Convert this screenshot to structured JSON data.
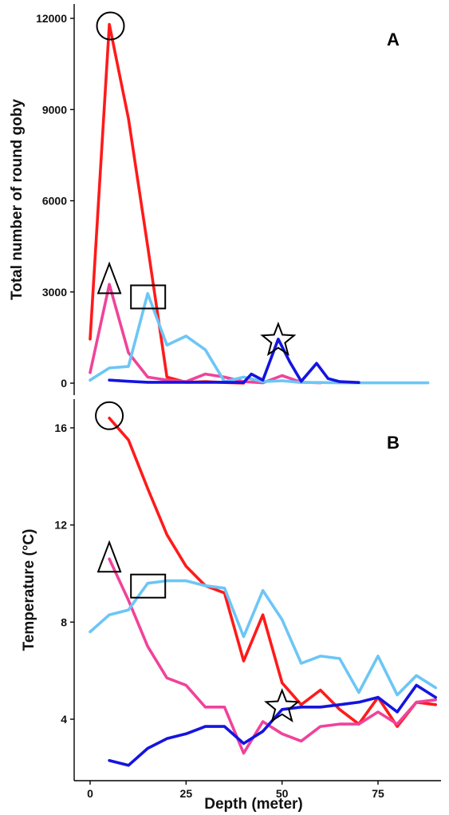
{
  "chart_data": [
    {
      "type": "line",
      "panel_label": "A",
      "xlabel": "",
      "ylabel": "Total number of round goby",
      "xlim": [
        -3,
        92
      ],
      "ylim": [
        0,
        12000
      ],
      "yticks": [
        0,
        3000,
        6000,
        9000,
        12000
      ],
      "xticks": [
        0,
        25,
        50,
        75
      ],
      "grid": false,
      "series": [
        {
          "color": "#ff1a1a",
          "x": [
            0,
            5,
            10,
            15,
            20,
            25,
            30,
            35,
            40
          ],
          "y": [
            1450,
            11800,
            8700,
            4500,
            200,
            30,
            50,
            20,
            0
          ]
        },
        {
          "color": "#f0439a",
          "x": [
            0,
            5,
            10,
            15,
            20,
            25,
            30,
            35,
            40,
            45,
            50,
            55,
            60
          ],
          "y": [
            350,
            3250,
            1000,
            200,
            100,
            50,
            300,
            200,
            50,
            10,
            250,
            30,
            10
          ]
        },
        {
          "color": "#6cc6f5",
          "x": [
            0,
            5,
            10,
            15,
            20,
            25,
            30,
            35,
            40,
            45,
            50,
            55,
            60,
            65,
            70,
            75,
            80,
            85,
            88
          ],
          "y": [
            100,
            500,
            550,
            2950,
            1250,
            1550,
            1100,
            50,
            200,
            50,
            80,
            20,
            20,
            10,
            10,
            10,
            10,
            10,
            10
          ]
        },
        {
          "color": "#1414e0",
          "x": [
            5,
            10,
            15,
            20,
            25,
            30,
            35,
            40,
            42,
            45,
            49,
            52,
            55,
            59,
            62,
            65,
            70
          ],
          "y": [
            100,
            60,
            30,
            30,
            30,
            30,
            30,
            20,
            300,
            100,
            1450,
            700,
            60,
            650,
            150,
            50,
            20
          ]
        }
      ],
      "markers": [
        {
          "shape": "circle",
          "x": 5.3,
          "y": 11750
        },
        {
          "shape": "triangle",
          "x": 5,
          "y": 3300
        },
        {
          "shape": "square",
          "x": 15,
          "y": 2850
        },
        {
          "shape": "star",
          "x": 49,
          "y": 1400
        }
      ]
    },
    {
      "type": "line",
      "panel_label": "B",
      "xlabel": "Depth (meter)",
      "ylabel": "Temperature (°C)",
      "xlim": [
        -3,
        92
      ],
      "ylim": [
        1.5,
        17
      ],
      "yticks": [
        4,
        8,
        12,
        16
      ],
      "xticks": [
        0,
        25,
        50,
        75
      ],
      "grid": false,
      "series": [
        {
          "color": "#ff1a1a",
          "x": [
            5,
            10,
            15,
            20,
            25,
            30,
            35,
            40,
            45,
            50,
            55,
            60,
            65,
            70,
            75,
            80,
            85,
            90
          ],
          "y": [
            16.4,
            15.5,
            13.5,
            11.6,
            10.3,
            9.5,
            9.2,
            6.4,
            8.3,
            5.5,
            4.6,
            5.2,
            4.4,
            3.8,
            4.9,
            3.7,
            4.7,
            4.6
          ]
        },
        {
          "color": "#f0439a",
          "x": [
            5,
            10,
            15,
            20,
            25,
            30,
            35,
            40,
            45,
            50,
            55,
            60,
            65,
            70,
            75,
            80,
            85,
            90
          ],
          "y": [
            10.6,
            8.9,
            7.0,
            5.7,
            5.4,
            4.5,
            4.5,
            2.6,
            3.9,
            3.4,
            3.1,
            3.7,
            3.8,
            3.8,
            4.3,
            3.8,
            4.7,
            4.8
          ]
        },
        {
          "color": "#6cc6f5",
          "x": [
            0,
            5,
            10,
            15,
            20,
            25,
            30,
            35,
            40,
            45,
            50,
            55,
            60,
            65,
            70,
            75,
            80,
            85,
            90
          ],
          "y": [
            7.6,
            8.3,
            8.5,
            9.6,
            9.7,
            9.7,
            9.5,
            9.4,
            7.4,
            9.3,
            8.1,
            6.3,
            6.6,
            6.5,
            5.1,
            6.6,
            5.0,
            5.8,
            5.3
          ]
        },
        {
          "color": "#1414e0",
          "x": [
            5,
            10,
            15,
            20,
            25,
            30,
            35,
            40,
            45,
            50,
            55,
            60,
            65,
            70,
            75,
            80,
            85,
            90
          ],
          "y": [
            2.3,
            2.1,
            2.8,
            3.2,
            3.4,
            3.7,
            3.7,
            3.0,
            3.5,
            4.4,
            4.5,
            4.5,
            4.6,
            4.7,
            4.9,
            4.3,
            5.4,
            4.9
          ]
        }
      ],
      "markers": [
        {
          "shape": "circle",
          "x": 5,
          "y": 16.5
        },
        {
          "shape": "triangle",
          "x": 5,
          "y": 10.5
        },
        {
          "shape": "square",
          "x": 15,
          "y": 9.5
        },
        {
          "shape": "star",
          "x": 50,
          "y": 4.5
        }
      ]
    }
  ]
}
